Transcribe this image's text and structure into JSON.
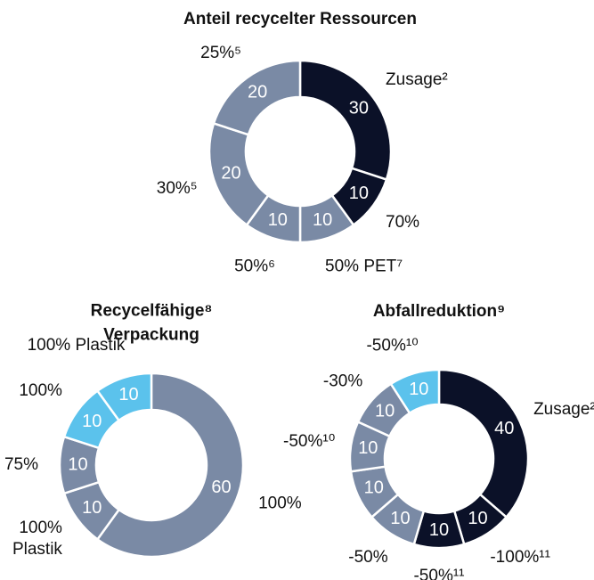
{
  "chart_data": [
    {
      "type": "pie",
      "title": "Anteil recycelter Ressourcen",
      "categories": [
        "Zusage²",
        "70%",
        "50% PET⁷",
        "50%⁶",
        "30%⁵",
        "25%⁵"
      ],
      "values": [
        30,
        10,
        10,
        10,
        20,
        20
      ],
      "colors": [
        "#0b1128",
        "#0b1128",
        "#7a8aa5",
        "#7a8aa5",
        "#7a8aa5",
        "#7a8aa5"
      ]
    },
    {
      "type": "pie",
      "title": "Recycelfähige⁸\nVerpackung",
      "categories": [
        "100%",
        "100%\nPlastik",
        "75%",
        "100%",
        "100% Plastik"
      ],
      "values": [
        60,
        10,
        10,
        10,
        10
      ],
      "colors": [
        "#7a8aa5",
        "#7a8aa5",
        "#7a8aa5",
        "#5bc2ec",
        "#5bc2ec"
      ]
    },
    {
      "type": "pie",
      "title": "Abfallreduktion⁹",
      "categories": [
        "Zusage²",
        "-100%¹¹",
        "-50%¹¹",
        "-50%",
        null,
        "-50%¹⁰",
        "-30%",
        "-50%¹⁰"
      ],
      "values": [
        40,
        10,
        10,
        10,
        10,
        10,
        10,
        10
      ],
      "colors": [
        "#0b1128",
        "#0b1128",
        "#0b1128",
        "#7a8aa5",
        "#7a8aa5",
        "#7a8aa5",
        "#7a8aa5",
        "#5bc2ec"
      ]
    }
  ]
}
